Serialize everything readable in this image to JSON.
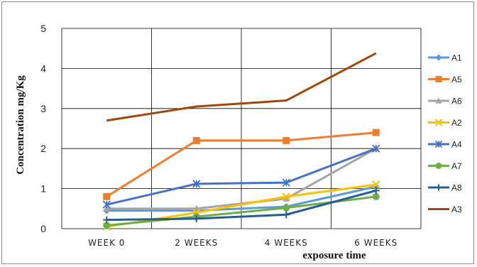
{
  "chart_data": {
    "type": "line",
    "title": "",
    "xlabel": "exposure time",
    "ylabel": "Concentration mg/Kg",
    "categories": [
      "WEEK 0",
      "2 WEEKS",
      "4 WEEKS",
      "6 WEEKS"
    ],
    "yticks": [
      "0",
      "1",
      "2",
      "3",
      "4",
      "5"
    ],
    "ylim": [
      0,
      5
    ],
    "grid": true,
    "legend_position": "right",
    "series": [
      {
        "name": "A1",
        "color": "#5b9bd5",
        "marker": "diamond",
        "values": [
          0.45,
          0.45,
          0.55,
          1.05
        ]
      },
      {
        "name": "A5",
        "color": "#ed7d31",
        "marker": "square",
        "values": [
          0.8,
          2.2,
          2.2,
          2.4
        ]
      },
      {
        "name": "A6",
        "color": "#a5a5a5",
        "marker": "triangle",
        "values": [
          0.5,
          0.5,
          0.75,
          2.0
        ]
      },
      {
        "name": "A2",
        "color": "#ffc000",
        "marker": "x",
        "values": [
          0.05,
          0.4,
          0.8,
          1.1
        ]
      },
      {
        "name": "A4",
        "color": "#4472c4",
        "marker": "star",
        "values": [
          0.6,
          1.12,
          1.15,
          2.0
        ]
      },
      {
        "name": "A7",
        "color": "#70ad47",
        "marker": "circle",
        "values": [
          0.08,
          0.3,
          0.52,
          0.8
        ]
      },
      {
        "name": "A8",
        "color": "#255e91",
        "marker": "plus",
        "values": [
          0.22,
          0.25,
          0.35,
          0.95
        ]
      },
      {
        "name": "A3",
        "color": "#9e480e",
        "marker": "none",
        "values": [
          2.7,
          3.05,
          3.2,
          4.38
        ]
      }
    ]
  }
}
